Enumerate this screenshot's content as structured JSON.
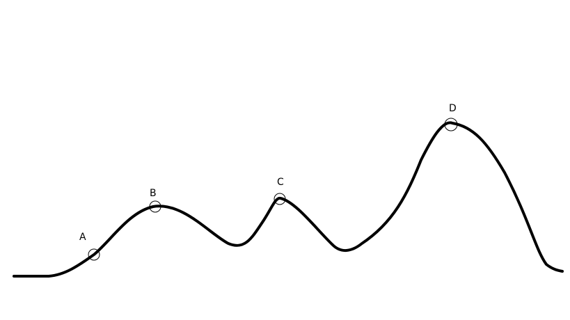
{
  "diagram": {
    "line_color": "#000000",
    "background": "#ffffff",
    "points": [
      {
        "id": "a",
        "label": "A"
      },
      {
        "id": "b",
        "label": "B"
      },
      {
        "id": "c",
        "label": "C"
      },
      {
        "id": "d",
        "label": "D"
      }
    ]
  }
}
